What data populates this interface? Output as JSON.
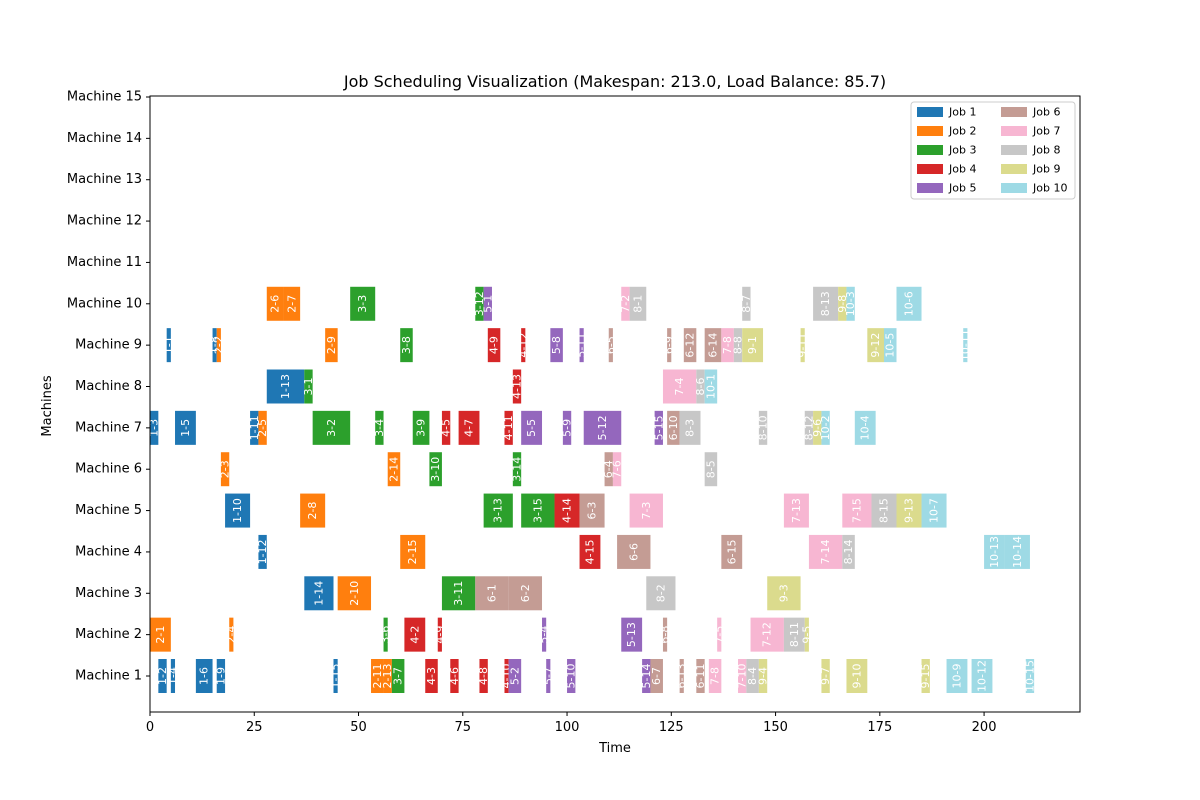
{
  "chart_data": {
    "type": "gantt",
    "title": "Job Scheduling Visualization (Makespan: 213.0, Load Balance: 85.7)",
    "xlabel": "Time",
    "ylabel": "Machines",
    "xlim": [
      0,
      223
    ],
    "x_ticks": [
      0,
      25,
      50,
      75,
      100,
      125,
      150,
      175,
      200
    ],
    "machines": [
      "Machine 1",
      "Machine 2",
      "Machine 3",
      "Machine 4",
      "Machine 5",
      "Machine 6",
      "Machine 7",
      "Machine 8",
      "Machine 9",
      "Machine 10",
      "Machine 11",
      "Machine 12",
      "Machine 13",
      "Machine 14",
      "Machine 15"
    ],
    "legend_position": "top-right",
    "jobs": [
      {
        "name": "Job 1",
        "color": "#1f77b4"
      },
      {
        "name": "Job 2",
        "color": "#ff7f0e"
      },
      {
        "name": "Job 3",
        "color": "#2ca02c"
      },
      {
        "name": "Job 4",
        "color": "#d62728"
      },
      {
        "name": "Job 5",
        "color": "#9467bd"
      },
      {
        "name": "Job 6",
        "color": "#c49c94"
      },
      {
        "name": "Job 7",
        "color": "#f7b6d2"
      },
      {
        "name": "Job 8",
        "color": "#c7c7c7"
      },
      {
        "name": "Job 9",
        "color": "#dbdb8d"
      },
      {
        "name": "Job 10",
        "color": "#9edae5"
      }
    ],
    "operations": [
      {
        "machine": 1,
        "job": 1,
        "label": "1-2",
        "start": 2,
        "end": 4
      },
      {
        "machine": 1,
        "job": 1,
        "label": "1-4",
        "start": 5,
        "end": 6
      },
      {
        "machine": 1,
        "job": 1,
        "label": "1-6",
        "start": 11,
        "end": 15
      },
      {
        "machine": 1,
        "job": 1,
        "label": "1-9",
        "start": 16,
        "end": 18
      },
      {
        "machine": 1,
        "job": 1,
        "label": "1-15",
        "start": 44,
        "end": 45
      },
      {
        "machine": 1,
        "job": 2,
        "label": "2-11",
        "start": 53,
        "end": 56
      },
      {
        "machine": 1,
        "job": 2,
        "label": "2-13",
        "start": 56,
        "end": 58
      },
      {
        "machine": 1,
        "job": 3,
        "label": "3-7",
        "start": 58,
        "end": 61
      },
      {
        "machine": 1,
        "job": 4,
        "label": "4-3",
        "start": 66,
        "end": 69
      },
      {
        "machine": 1,
        "job": 4,
        "label": "4-6",
        "start": 72,
        "end": 74
      },
      {
        "machine": 1,
        "job": 4,
        "label": "4-8",
        "start": 79,
        "end": 81
      },
      {
        "machine": 1,
        "job": 4,
        "label": "4-10",
        "start": 85,
        "end": 86
      },
      {
        "machine": 1,
        "job": 5,
        "label": "5-2",
        "start": 86,
        "end": 89
      },
      {
        "machine": 1,
        "job": 5,
        "label": "5-7",
        "start": 95,
        "end": 96
      },
      {
        "machine": 1,
        "job": 5,
        "label": "5-10",
        "start": 100,
        "end": 102
      },
      {
        "machine": 1,
        "job": 5,
        "label": "5-14",
        "start": 118,
        "end": 120
      },
      {
        "machine": 1,
        "job": 6,
        "label": "6-7",
        "start": 120,
        "end": 123
      },
      {
        "machine": 1,
        "job": 6,
        "label": "6-13",
        "start": 127,
        "end": 128
      },
      {
        "machine": 1,
        "job": 6,
        "label": "6-11",
        "start": 131,
        "end": 133
      },
      {
        "machine": 1,
        "job": 7,
        "label": "7-8",
        "start": 134,
        "end": 137
      },
      {
        "machine": 1,
        "job": 7,
        "label": "7-10",
        "start": 141,
        "end": 143
      },
      {
        "machine": 1,
        "job": 8,
        "label": "8-4",
        "start": 143,
        "end": 146
      },
      {
        "machine": 1,
        "job": 9,
        "label": "9-4",
        "start": 146,
        "end": 148
      },
      {
        "machine": 1,
        "job": 9,
        "label": "9-7",
        "start": 161,
        "end": 163
      },
      {
        "machine": 1,
        "job": 9,
        "label": "9-10",
        "start": 167,
        "end": 172
      },
      {
        "machine": 1,
        "job": 9,
        "label": "9-15",
        "start": 185,
        "end": 187
      },
      {
        "machine": 1,
        "job": 10,
        "label": "10-9",
        "start": 191,
        "end": 196
      },
      {
        "machine": 1,
        "job": 10,
        "label": "10-12",
        "start": 197,
        "end": 202
      },
      {
        "machine": 1,
        "job": 10,
        "label": "10-15",
        "start": 210,
        "end": 212
      },
      {
        "machine": 2,
        "job": 2,
        "label": "2-1",
        "start": 0,
        "end": 5
      },
      {
        "machine": 2,
        "job": 2,
        "label": "2-4",
        "start": 19,
        "end": 20
      },
      {
        "machine": 2,
        "job": 3,
        "label": "3-6",
        "start": 56,
        "end": 57
      },
      {
        "machine": 2,
        "job": 4,
        "label": "4-2",
        "start": 61,
        "end": 66
      },
      {
        "machine": 2,
        "job": 4,
        "label": "4-9",
        "start": 69,
        "end": 70
      },
      {
        "machine": 2,
        "job": 5,
        "label": "5-4",
        "start": 94,
        "end": 95
      },
      {
        "machine": 2,
        "job": 5,
        "label": "5-13",
        "start": 113,
        "end": 118
      },
      {
        "machine": 2,
        "job": 6,
        "label": "6-8",
        "start": 123,
        "end": 124
      },
      {
        "machine": 2,
        "job": 7,
        "label": "7-5",
        "start": 136,
        "end": 137
      },
      {
        "machine": 2,
        "job": 7,
        "label": "7-12",
        "start": 144,
        "end": 152
      },
      {
        "machine": 2,
        "job": 8,
        "label": "8-11",
        "start": 152,
        "end": 157
      },
      {
        "machine": 2,
        "job": 9,
        "label": "9-5",
        "start": 157,
        "end": 158
      },
      {
        "machine": 3,
        "job": 1,
        "label": "1-14",
        "start": 37,
        "end": 44
      },
      {
        "machine": 3,
        "job": 2,
        "label": "2-10",
        "start": 45,
        "end": 53
      },
      {
        "machine": 3,
        "job": 3,
        "label": "3-11",
        "start": 70,
        "end": 78
      },
      {
        "machine": 3,
        "job": 6,
        "label": "6-1",
        "start": 78,
        "end": 86
      },
      {
        "machine": 3,
        "job": 6,
        "label": "6-2",
        "start": 86,
        "end": 94
      },
      {
        "machine": 3,
        "job": 8,
        "label": "8-2",
        "start": 119,
        "end": 126
      },
      {
        "machine": 3,
        "job": 9,
        "label": "9-3",
        "start": 148,
        "end": 156
      },
      {
        "machine": 4,
        "job": 1,
        "label": "1-12",
        "start": 26,
        "end": 28
      },
      {
        "machine": 4,
        "job": 2,
        "label": "2-15",
        "start": 60,
        "end": 66
      },
      {
        "machine": 4,
        "job": 4,
        "label": "4-15",
        "start": 103,
        "end": 108
      },
      {
        "machine": 4,
        "job": 6,
        "label": "6-6",
        "start": 112,
        "end": 120
      },
      {
        "machine": 4,
        "job": 6,
        "label": "6-15",
        "start": 137,
        "end": 142
      },
      {
        "machine": 4,
        "job": 7,
        "label": "7-14",
        "start": 158,
        "end": 166
      },
      {
        "machine": 4,
        "job": 8,
        "label": "8-14",
        "start": 166,
        "end": 169
      },
      {
        "machine": 4,
        "job": 10,
        "label": "10-13",
        "start": 200,
        "end": 205
      },
      {
        "machine": 4,
        "job": 10,
        "label": "10-14",
        "start": 205,
        "end": 211
      },
      {
        "machine": 5,
        "job": 1,
        "label": "1-10",
        "start": 18,
        "end": 24
      },
      {
        "machine": 5,
        "job": 2,
        "label": "2-8",
        "start": 36,
        "end": 42
      },
      {
        "machine": 5,
        "job": 3,
        "label": "3-13",
        "start": 80,
        "end": 87
      },
      {
        "machine": 5,
        "job": 3,
        "label": "3-15",
        "start": 89,
        "end": 97
      },
      {
        "machine": 5,
        "job": 4,
        "label": "4-14",
        "start": 97,
        "end": 103
      },
      {
        "machine": 5,
        "job": 6,
        "label": "6-3",
        "start": 103,
        "end": 109
      },
      {
        "machine": 5,
        "job": 7,
        "label": "7-3",
        "start": 115,
        "end": 123
      },
      {
        "machine": 5,
        "job": 7,
        "label": "7-13",
        "start": 152,
        "end": 158
      },
      {
        "machine": 5,
        "job": 7,
        "label": "7-15",
        "start": 166,
        "end": 173
      },
      {
        "machine": 5,
        "job": 8,
        "label": "8-15",
        "start": 173,
        "end": 179
      },
      {
        "machine": 5,
        "job": 9,
        "label": "9-13",
        "start": 179,
        "end": 185
      },
      {
        "machine": 5,
        "job": 10,
        "label": "10-7",
        "start": 185,
        "end": 191
      },
      {
        "machine": 6,
        "job": 2,
        "label": "2-3",
        "start": 17,
        "end": 19
      },
      {
        "machine": 6,
        "job": 2,
        "label": "2-14",
        "start": 57,
        "end": 60
      },
      {
        "machine": 6,
        "job": 3,
        "label": "3-10",
        "start": 67,
        "end": 70
      },
      {
        "machine": 6,
        "job": 3,
        "label": "3-14",
        "start": 87,
        "end": 89
      },
      {
        "machine": 6,
        "job": 6,
        "label": "6-4",
        "start": 109,
        "end": 111
      },
      {
        "machine": 6,
        "job": 7,
        "label": "7-6",
        "start": 111,
        "end": 113
      },
      {
        "machine": 6,
        "job": 8,
        "label": "8-5",
        "start": 133,
        "end": 136
      },
      {
        "machine": 7,
        "job": 1,
        "label": "1-3",
        "start": 0,
        "end": 2
      },
      {
        "machine": 7,
        "job": 1,
        "label": "1-5",
        "start": 6,
        "end": 11
      },
      {
        "machine": 7,
        "job": 1,
        "label": "1-11",
        "start": 24,
        "end": 26
      },
      {
        "machine": 7,
        "job": 2,
        "label": "2-5",
        "start": 26,
        "end": 28
      },
      {
        "machine": 7,
        "job": 3,
        "label": "3-2",
        "start": 39,
        "end": 48
      },
      {
        "machine": 7,
        "job": 3,
        "label": "3-4",
        "start": 54,
        "end": 56
      },
      {
        "machine": 7,
        "job": 3,
        "label": "3-9",
        "start": 63,
        "end": 67
      },
      {
        "machine": 7,
        "job": 4,
        "label": "4-5",
        "start": 70,
        "end": 72
      },
      {
        "machine": 7,
        "job": 4,
        "label": "4-7",
        "start": 74,
        "end": 79
      },
      {
        "machine": 7,
        "job": 4,
        "label": "4-11",
        "start": 85,
        "end": 87
      },
      {
        "machine": 7,
        "job": 5,
        "label": "5-5",
        "start": 89,
        "end": 94
      },
      {
        "machine": 7,
        "job": 5,
        "label": "5-9",
        "start": 99,
        "end": 101
      },
      {
        "machine": 7,
        "job": 5,
        "label": "5-12",
        "start": 104,
        "end": 113
      },
      {
        "machine": 7,
        "job": 5,
        "label": "5-15",
        "start": 121,
        "end": 123
      },
      {
        "machine": 7,
        "job": 6,
        "label": "6-10",
        "start": 124,
        "end": 127
      },
      {
        "machine": 7,
        "job": 8,
        "label": "8-3",
        "start": 127,
        "end": 132
      },
      {
        "machine": 7,
        "job": 8,
        "label": "8-10",
        "start": 146,
        "end": 148
      },
      {
        "machine": 7,
        "job": 8,
        "label": "8-12",
        "start": 157,
        "end": 159
      },
      {
        "machine": 7,
        "job": 9,
        "label": "9-6",
        "start": 159,
        "end": 161
      },
      {
        "machine": 7,
        "job": 10,
        "label": "10-2",
        "start": 161,
        "end": 163
      },
      {
        "machine": 7,
        "job": 10,
        "label": "10-4",
        "start": 169,
        "end": 174
      },
      {
        "machine": 8,
        "job": 1,
        "label": "1-13",
        "start": 28,
        "end": 37
      },
      {
        "machine": 8,
        "job": 3,
        "label": "3-1",
        "start": 37,
        "end": 39
      },
      {
        "machine": 8,
        "job": 4,
        "label": "4-13",
        "start": 87,
        "end": 89
      },
      {
        "machine": 8,
        "job": 7,
        "label": "7-4",
        "start": 123,
        "end": 131
      },
      {
        "machine": 8,
        "job": 8,
        "label": "8-6",
        "start": 131,
        "end": 133
      },
      {
        "machine": 8,
        "job": 10,
        "label": "10-1",
        "start": 133,
        "end": 136
      },
      {
        "machine": 9,
        "job": 1,
        "label": "1-1",
        "start": 4,
        "end": 5
      },
      {
        "machine": 9,
        "job": 1,
        "label": "1-8",
        "start": 15,
        "end": 16
      },
      {
        "machine": 9,
        "job": 2,
        "label": "2-2",
        "start": 16,
        "end": 17
      },
      {
        "machine": 9,
        "job": 2,
        "label": "2-9",
        "start": 42,
        "end": 45
      },
      {
        "machine": 9,
        "job": 3,
        "label": "3-8",
        "start": 60,
        "end": 63
      },
      {
        "machine": 9,
        "job": 4,
        "label": "4-9",
        "start": 81,
        "end": 84
      },
      {
        "machine": 9,
        "job": 4,
        "label": "4-12",
        "start": 89,
        "end": 90
      },
      {
        "machine": 9,
        "job": 5,
        "label": "5-8",
        "start": 96,
        "end": 99
      },
      {
        "machine": 9,
        "job": 5,
        "label": "5-11",
        "start": 103,
        "end": 104
      },
      {
        "machine": 9,
        "job": 6,
        "label": "6-5",
        "start": 110,
        "end": 111
      },
      {
        "machine": 9,
        "job": 6,
        "label": "6-9",
        "start": 124,
        "end": 125
      },
      {
        "machine": 9,
        "job": 6,
        "label": "6-12",
        "start": 128,
        "end": 131
      },
      {
        "machine": 9,
        "job": 6,
        "label": "6-14",
        "start": 133,
        "end": 137
      },
      {
        "machine": 9,
        "job": 7,
        "label": "7-8",
        "start": 137,
        "end": 140
      },
      {
        "machine": 9,
        "job": 8,
        "label": "8-8",
        "start": 140,
        "end": 142
      },
      {
        "machine": 9,
        "job": 9,
        "label": "9-1",
        "start": 142,
        "end": 147
      },
      {
        "machine": 9,
        "job": 9,
        "label": "9-11",
        "start": 156,
        "end": 157
      },
      {
        "machine": 9,
        "job": 9,
        "label": "9-12",
        "start": 172,
        "end": 176
      },
      {
        "machine": 9,
        "job": 10,
        "label": "10-5",
        "start": 176,
        "end": 179
      },
      {
        "machine": 9,
        "job": 10,
        "label": "10-11",
        "start": 195,
        "end": 196
      },
      {
        "machine": 10,
        "job": 2,
        "label": "2-6",
        "start": 28,
        "end": 32
      },
      {
        "machine": 10,
        "job": 2,
        "label": "2-7",
        "start": 32,
        "end": 36
      },
      {
        "machine": 10,
        "job": 3,
        "label": "3-3",
        "start": 48,
        "end": 54
      },
      {
        "machine": 10,
        "job": 3,
        "label": "3-12",
        "start": 78,
        "end": 80
      },
      {
        "machine": 10,
        "job": 5,
        "label": "5-1",
        "start": 80,
        "end": 82
      },
      {
        "machine": 10,
        "job": 7,
        "label": "7-2",
        "start": 113,
        "end": 115
      },
      {
        "machine": 10,
        "job": 8,
        "label": "8-1",
        "start": 115,
        "end": 119
      },
      {
        "machine": 10,
        "job": 8,
        "label": "8-7",
        "start": 142,
        "end": 144
      },
      {
        "machine": 10,
        "job": 8,
        "label": "8-13",
        "start": 159,
        "end": 165
      },
      {
        "machine": 10,
        "job": 9,
        "label": "9-8",
        "start": 165,
        "end": 167
      },
      {
        "machine": 10,
        "job": 10,
        "label": "10-3",
        "start": 167,
        "end": 169
      },
      {
        "machine": 10,
        "job": 10,
        "label": "10-6",
        "start": 179,
        "end": 185
      }
    ]
  }
}
